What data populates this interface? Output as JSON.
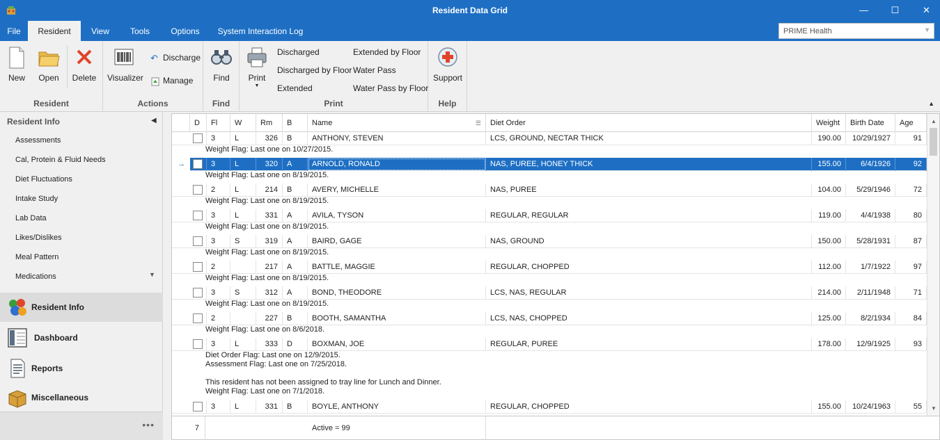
{
  "window": {
    "title": "Resident Data Grid",
    "minimize": "—",
    "maximize": "☐",
    "close": "✕"
  },
  "menu": {
    "tabs": [
      "File",
      "Resident",
      "View",
      "Tools",
      "Options",
      "System Interaction Log"
    ],
    "active_tab": "Resident",
    "org_selector": "PRIME Health"
  },
  "ribbon": {
    "groups": {
      "resident": {
        "label": "Resident",
        "new": "New",
        "open": "Open",
        "delete": "Delete"
      },
      "actions": {
        "label": "Actions",
        "visualizer": "Visualizer",
        "discharge": "Discharge",
        "manage": "Manage"
      },
      "find": {
        "label": "Find",
        "find": "Find"
      },
      "print": {
        "label": "Print",
        "print": "Print",
        "items": [
          "Discharged",
          "Discharged by Floor",
          "Extended",
          "Extended by Floor",
          "Water Pass",
          "Water Pass by Floor"
        ]
      },
      "help": {
        "label": "Help",
        "support": "Support"
      }
    }
  },
  "leftnav": {
    "header": "Resident Info",
    "items": [
      "Assessments",
      "Cal, Protein & Fluid Needs",
      "Diet Fluctuations",
      "Intake Study",
      "Lab Data",
      "Likes/Dislikes",
      "Meal Pattern",
      "Medications"
    ],
    "sections": [
      "Resident Info",
      "Dashboard",
      "Reports",
      "Miscellaneous"
    ],
    "active_section": "Resident Info",
    "more": "•••"
  },
  "grid": {
    "columns": [
      "D",
      "Fl",
      "W",
      "Rm",
      "B",
      "Name",
      "Diet Order",
      "Weight",
      "Birth Date",
      "Age"
    ],
    "rows": [
      {
        "fl": "3",
        "w": "L",
        "rm": "326",
        "b": "B",
        "name": "ANTHONY, STEVEN",
        "diet": "LCS, GROUND, NECTAR THICK",
        "weight": "190.00",
        "birth": "10/29/1927",
        "age": "91",
        "flags": [
          "Weight Flag: Last one on 10/27/2015."
        ]
      },
      {
        "fl": "3",
        "w": "L",
        "rm": "320",
        "b": "A",
        "name": "ARNOLD, RONALD",
        "diet": "NAS, PUREE, HONEY THICK",
        "weight": "155.00",
        "birth": "6/4/1926",
        "age": "92",
        "selected": true,
        "flags": [
          "Weight Flag: Last one on 8/19/2015."
        ]
      },
      {
        "fl": "2",
        "w": "L",
        "rm": "214",
        "b": "B",
        "name": "AVERY, MICHELLE",
        "diet": "NAS, PUREE",
        "weight": "104.00",
        "birth": "5/29/1946",
        "age": "72",
        "flags": [
          "Weight Flag: Last one on 8/19/2015."
        ]
      },
      {
        "fl": "3",
        "w": "L",
        "rm": "331",
        "b": "A",
        "name": "AVILA, TYSON",
        "diet": "REGULAR, REGULAR",
        "weight": "119.00",
        "birth": "4/4/1938",
        "age": "80",
        "flags": [
          "Weight Flag: Last one on 8/19/2015."
        ]
      },
      {
        "fl": "3",
        "w": "S",
        "rm": "319",
        "b": "A",
        "name": "BAIRD, GAGE",
        "diet": "NAS, GROUND",
        "weight": "150.00",
        "birth": "5/28/1931",
        "age": "87",
        "flags": [
          "Weight Flag: Last one on 8/19/2015."
        ]
      },
      {
        "fl": "2",
        "w": "",
        "rm": "217",
        "b": "A",
        "name": "BATTLE, MAGGIE",
        "diet": "REGULAR, CHOPPED",
        "weight": "112.00",
        "birth": "1/7/1922",
        "age": "97",
        "flags": [
          "Weight Flag: Last one on 8/19/2015."
        ]
      },
      {
        "fl": "3",
        "w": "S",
        "rm": "312",
        "b": "A",
        "name": "BOND, THEODORE",
        "diet": "LCS, NAS, REGULAR",
        "weight": "214.00",
        "birth": "2/11/1948",
        "age": "71",
        "flags": [
          "Weight Flag: Last one on 8/19/2015."
        ]
      },
      {
        "fl": "2",
        "w": "",
        "rm": "227",
        "b": "B",
        "name": "BOOTH, SAMANTHA",
        "diet": "LCS, NAS, CHOPPED",
        "weight": "125.00",
        "birth": "8/2/1934",
        "age": "84",
        "flags": [
          "Weight Flag: Last one on 8/6/2018."
        ]
      },
      {
        "fl": "3",
        "w": "L",
        "rm": "333",
        "b": "D",
        "name": "BOXMAN, JOE",
        "diet": "REGULAR, PUREE",
        "weight": "178.00",
        "birth": "12/9/1925",
        "age": "93",
        "flags": [
          "Diet Order Flag: Last one on 12/9/2015.",
          "Assessment Flag: Last one on 7/25/2018.",
          "",
          "This resident has not been assigned to tray line for Lunch and Dinner.",
          "Weight Flag: Last one on 7/1/2018."
        ]
      },
      {
        "fl": "3",
        "w": "L",
        "rm": "331",
        "b": "B",
        "name": "BOYLE, ANTHONY",
        "diet": "REGULAR, CHOPPED",
        "weight": "155.00",
        "birth": "10/24/1963",
        "age": "55",
        "flags": []
      }
    ],
    "footer": {
      "count": "7",
      "active": "Active = 99"
    },
    "row_indicator": "→"
  }
}
